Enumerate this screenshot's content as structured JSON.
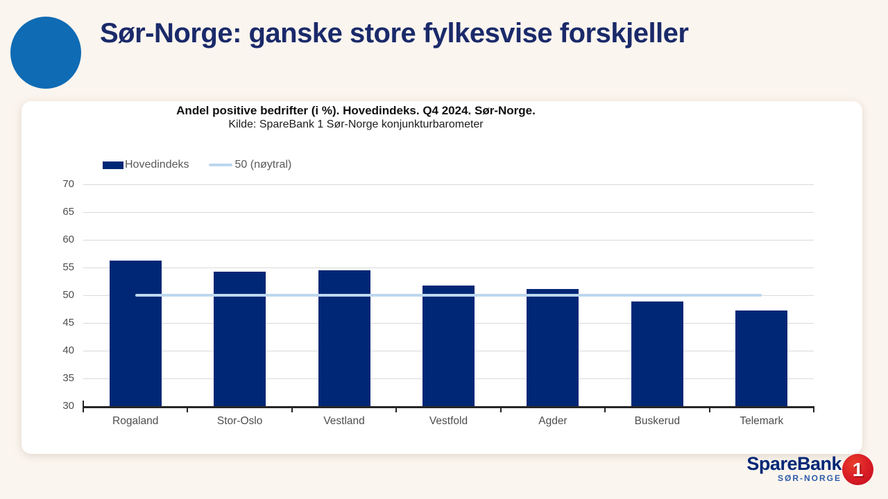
{
  "page": {
    "title": "Sør-Norge: ganske store fylkesvise forskjeller",
    "background_color": "#FBF5EF",
    "accent_circle_color": "#0F6BB4",
    "title_color": "#1A2A6A"
  },
  "chart_data": {
    "type": "bar",
    "title": "Andel positive bedrifter (i %). Hovedindeks. Q4 2024. Sør-Norge.",
    "subtitle": "Kilde: SpareBank 1 Sør-Norge konjunkturbarometer",
    "categories": [
      "Rogaland",
      "Stor-Oslo",
      "Vestland",
      "Vestfold",
      "Agder",
      "Buskerud",
      "Telemark"
    ],
    "series": [
      {
        "name": "Hovedindeks",
        "values": [
          56.3,
          54.2,
          54.5,
          51.7,
          51.1,
          48.9,
          47.3
        ],
        "color": "#002776"
      }
    ],
    "ref_line": {
      "label": "50 (nøytral)",
      "value": 50,
      "color": "#BDD7EE"
    },
    "ylim": [
      30,
      70
    ],
    "ytick_step": 5,
    "yticks": [
      30,
      35,
      40,
      45,
      50,
      55,
      60,
      65,
      70
    ],
    "grid": "horizontal",
    "gridline_color": "#D9D9D9",
    "axis_color": "#262626",
    "tick_label_color": "#4d4d4d",
    "legend_position": "top-left"
  },
  "logo": {
    "brand": "SpareBank",
    "region": "SØR-NORGE",
    "emblem_number": "1",
    "navy": "#002776",
    "region_blue": "#2B5CA8",
    "red": "#DB1F26",
    "red_light": "#E8402C",
    "red_dark": "#C00D1E"
  }
}
